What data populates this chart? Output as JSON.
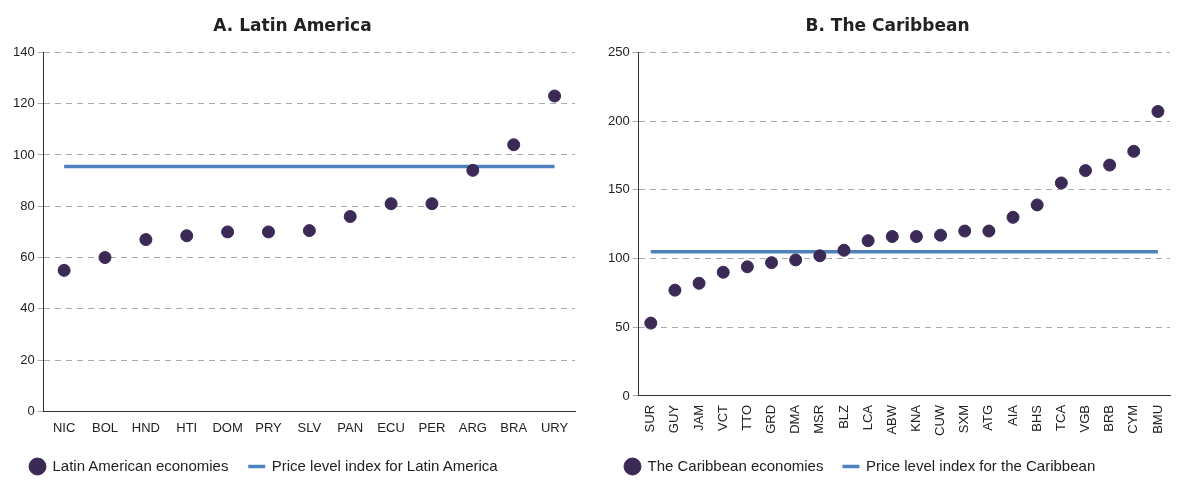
{
  "chart_data": [
    {
      "type": "scatter",
      "title": "A. Latin America",
      "categories": [
        "NIC",
        "BOL",
        "HND",
        "HTI",
        "DOM",
        "PRY",
        "SLV",
        "PAN",
        "ECU",
        "PER",
        "ARG",
        "BRA",
        "URY"
      ],
      "series": [
        {
          "name": "Latin American economies",
          "marker": "circle",
          "color": "#3b2a55",
          "values": [
            55,
            60,
            67,
            68.5,
            70,
            70,
            70.5,
            76,
            81,
            81,
            94,
            104,
            123
          ]
        },
        {
          "name": "Price level index for Latin America",
          "type": "line",
          "marker": "none",
          "color": "#4f81bd",
          "values": [
            95.5,
            95.5,
            95.5,
            95.5,
            95.5,
            95.5,
            95.5,
            95.5,
            95.5,
            95.5,
            95.5,
            95.5,
            95.5
          ]
        }
      ],
      "ylim": [
        0,
        140
      ],
      "yticks": [
        0,
        20,
        40,
        60,
        80,
        100,
        120,
        140
      ],
      "grid": "y",
      "legend": "bottom"
    },
    {
      "type": "scatter",
      "title": "B. The Caribbean",
      "categories": [
        "SUR",
        "GUY",
        "JAM",
        "VCT",
        "TTO",
        "GRD",
        "DMA",
        "MSR",
        "BLZ",
        "LCA",
        "ABW",
        "KNA",
        "CUW",
        "SXM",
        "ATG",
        "AIA",
        "BHS",
        "TCA",
        "VGB",
        "BRB",
        "CYM",
        "BMU"
      ],
      "series": [
        {
          "name": "The Caribbean economies",
          "marker": "circle",
          "color": "#3b2a55",
          "values": [
            53,
            77,
            82,
            90,
            94,
            97,
            99,
            102,
            106,
            113,
            116,
            116,
            117,
            120,
            120,
            130,
            139,
            155,
            164,
            168,
            178,
            207
          ]
        },
        {
          "name": "Price level index for the Caribbean",
          "type": "line",
          "marker": "none",
          "color": "#4f81bd",
          "values": [
            105,
            105,
            105,
            105,
            105,
            105,
            105,
            105,
            105,
            105,
            105,
            105,
            105,
            105,
            105,
            105,
            105,
            105,
            105,
            105,
            105,
            105
          ]
        }
      ],
      "ylim": [
        0,
        250
      ],
      "yticks": [
        0,
        50,
        100,
        150,
        200,
        250
      ],
      "grid": "y",
      "legend": "bottom"
    }
  ]
}
